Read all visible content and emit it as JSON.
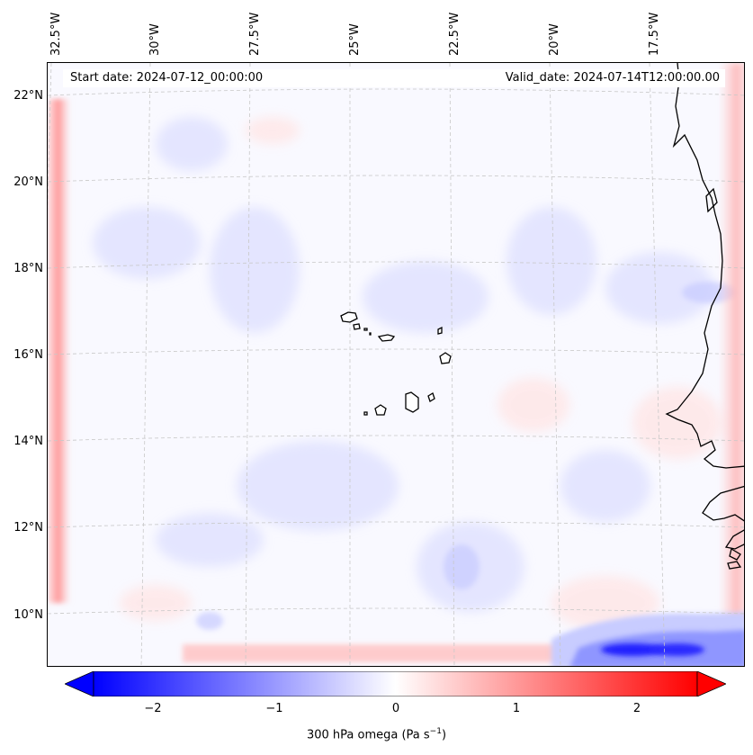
{
  "info": {
    "start_date": "Start date: 2024-07-12_00:00:00",
    "valid_date": "Valid_date: 2024-07-14T12:00:00.00"
  },
  "longitude_labels": [
    "32.5°W",
    "30°W",
    "27.5°W",
    "25°W",
    "22.5°W",
    "20°W",
    "17.5°W"
  ],
  "latitude_labels": [
    "22°N",
    "20°N",
    "18°N",
    "16°N",
    "14°N",
    "12°N",
    "10°N"
  ],
  "colorbar": {
    "label": "300 hPa omega (Pa s",
    "label_unit_exponent": "−1",
    "label_close": ")",
    "ticks": [
      "−2",
      "−1",
      "0",
      "1",
      "2"
    ],
    "range": [
      -2.6,
      2.6
    ],
    "colormap": "bwr",
    "low_color": "#0000ff",
    "mid_color": "#ffffff",
    "high_color": "#ff0000"
  },
  "colors": {
    "coastline": "#000000",
    "gridline": "#c8c8c8",
    "background_field": "#f9f9ff"
  }
}
